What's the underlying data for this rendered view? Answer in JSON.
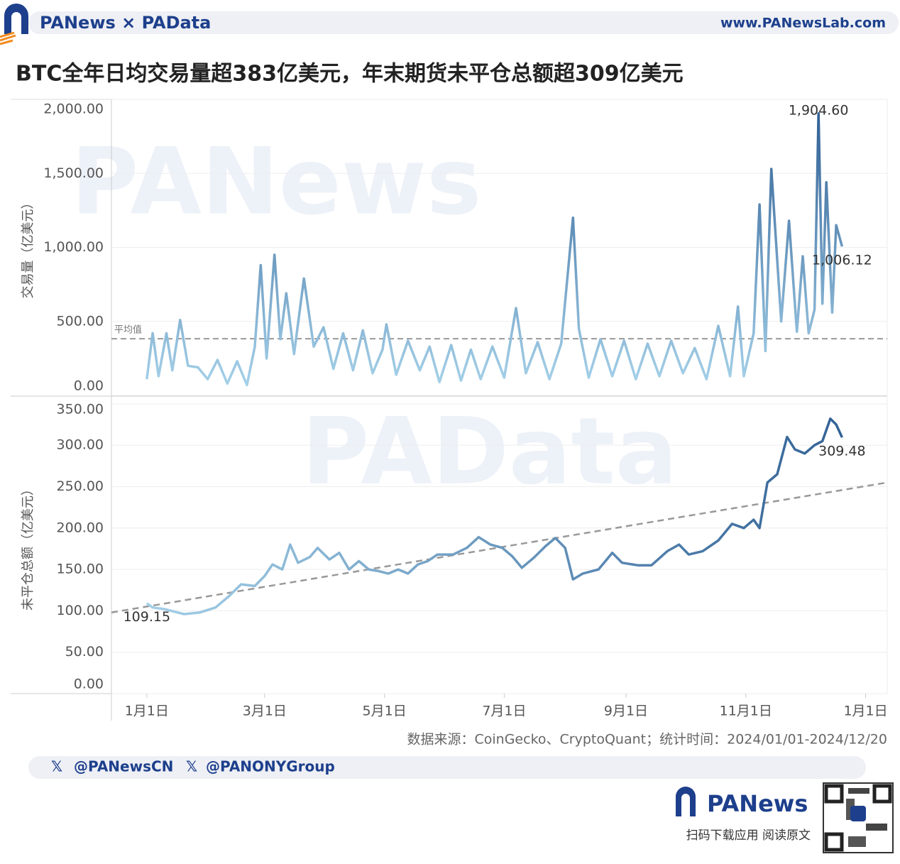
{
  "header": {
    "brand": "PANews × PAData",
    "site": "www.PANewsLab.com",
    "title": "BTC全年日均交易量超383亿美元，年末期货未平仓总额超309亿美元"
  },
  "watermarks": [
    "PANews",
    "PAData"
  ],
  "footer": {
    "source": "数据来源：CoinGecko、CryptoQuant；统计时间：2024/01/01-2024/12/20",
    "handles": [
      "@PANewsCN",
      "@PANONYGroup"
    ],
    "brand": "PANews",
    "cta": "扫码下载应用 阅读原文"
  },
  "chart_data": [
    {
      "type": "line",
      "y_label": "交易量（亿美元）",
      "xlim": [
        "2023-12-14",
        "2025-01-12"
      ],
      "ylim": [
        0,
        2000
      ],
      "yticks": [
        {
          "value": 0,
          "label": "0.00"
        },
        {
          "value": 500,
          "label": "500.00"
        },
        {
          "value": 1000,
          "label": "1,000.00"
        },
        {
          "value": 1500,
          "label": "1,500.00"
        },
        {
          "value": 2000,
          "label": "2,000.00"
        }
      ],
      "grid": true,
      "gradient": "vertical",
      "color_scale": [
        "#a9d5ec",
        "#2b5b91"
      ],
      "reference_line": {
        "value": 383,
        "label": "平均值",
        "color": "#999999"
      },
      "x": [
        "2024-01-01",
        "2024-01-04",
        "2024-01-07",
        "2024-01-11",
        "2024-01-14",
        "2024-01-18",
        "2024-01-22",
        "2024-01-27",
        "2024-02-01",
        "2024-02-06",
        "2024-02-11",
        "2024-02-16",
        "2024-02-21",
        "2024-02-25",
        "2024-02-28",
        "2024-03-02",
        "2024-03-06",
        "2024-03-09",
        "2024-03-12",
        "2024-03-16",
        "2024-03-21",
        "2024-03-26",
        "2024-03-31",
        "2024-04-05",
        "2024-04-10",
        "2024-04-15",
        "2024-04-20",
        "2024-04-25",
        "2024-04-30",
        "2024-05-02",
        "2024-05-07",
        "2024-05-13",
        "2024-05-19",
        "2024-05-24",
        "2024-05-29",
        "2024-06-04",
        "2024-06-09",
        "2024-06-14",
        "2024-06-19",
        "2024-06-25",
        "2024-07-01",
        "2024-07-07",
        "2024-07-12",
        "2024-07-18",
        "2024-07-24",
        "2024-07-30",
        "2024-08-05",
        "2024-08-08",
        "2024-08-13",
        "2024-08-19",
        "2024-08-25",
        "2024-08-31",
        "2024-09-06",
        "2024-09-12",
        "2024-09-18",
        "2024-09-24",
        "2024-09-30",
        "2024-10-06",
        "2024-10-12",
        "2024-10-18",
        "2024-10-24",
        "2024-10-28",
        "2024-10-31",
        "2024-11-05",
        "2024-11-08",
        "2024-11-11",
        "2024-11-14",
        "2024-11-19",
        "2024-11-23",
        "2024-11-27",
        "2024-11-30",
        "2024-12-03",
        "2024-12-06",
        "2024-12-08",
        "2024-12-10",
        "2024-12-12",
        "2024-12-15",
        "2024-12-17",
        "2024-12-20"
      ],
      "values": [
        110,
        420,
        130,
        420,
        170,
        510,
        200,
        190,
        110,
        240,
        80,
        230,
        70,
        330,
        880,
        250,
        950,
        380,
        690,
        280,
        790,
        330,
        460,
        180,
        420,
        170,
        440,
        150,
        310,
        480,
        140,
        370,
        170,
        330,
        90,
        340,
        100,
        310,
        110,
        330,
        120,
        590,
        150,
        360,
        110,
        350,
        1200,
        450,
        120,
        380,
        130,
        370,
        110,
        350,
        130,
        370,
        150,
        320,
        110,
        470,
        130,
        600,
        130,
        420,
        1290,
        300,
        1530,
        500,
        1180,
        430,
        940,
        420,
        580,
        1904.6,
        620,
        1440,
        560,
        1150,
        1006.12
      ],
      "value_labels": [
        null,
        null,
        null,
        null,
        null,
        null,
        null,
        null,
        null,
        null,
        null,
        null,
        null,
        null,
        null,
        null,
        null,
        null,
        null,
        null,
        null,
        null,
        null,
        null,
        null,
        null,
        null,
        null,
        null,
        null,
        null,
        null,
        null,
        null,
        null,
        null,
        null,
        null,
        null,
        null,
        null,
        null,
        null,
        null,
        null,
        null,
        null,
        null,
        null,
        null,
        null,
        null,
        null,
        null,
        null,
        null,
        null,
        null,
        null,
        null,
        null,
        null,
        null,
        null,
        null,
        null,
        null,
        null,
        null,
        null,
        null,
        null,
        null,
        "1,904.60",
        null,
        null,
        null,
        null,
        "1,006.12"
      ]
    },
    {
      "type": "line",
      "y_label": "未平仓总额（亿美元）",
      "xlim": [
        "2023-12-14",
        "2025-01-12"
      ],
      "ylim": [
        0,
        355
      ],
      "yticks": [
        {
          "value": 0,
          "label": "0.00"
        },
        {
          "value": 50,
          "label": "50.00"
        },
        {
          "value": 100,
          "label": "100.00"
        },
        {
          "value": 150,
          "label": "150.00"
        },
        {
          "value": 200,
          "label": "200.00"
        },
        {
          "value": 250,
          "label": "250.00"
        },
        {
          "value": 300,
          "label": "300.00"
        },
        {
          "value": 350,
          "label": "350.00"
        }
      ],
      "xticks": [
        {
          "value": "2024-01-01",
          "label": "1月1日"
        },
        {
          "value": "2024-03-01",
          "label": "3月1日"
        },
        {
          "value": "2024-05-01",
          "label": "5月1日"
        },
        {
          "value": "2024-07-01",
          "label": "7月1日"
        },
        {
          "value": "2024-09-01",
          "label": "9月1日"
        },
        {
          "value": "2024-11-01",
          "label": "11月1日"
        },
        {
          "value": "2025-01-01",
          "label": "1月1日"
        }
      ],
      "grid": true,
      "gradient": "horizontal",
      "color_scale": [
        "#a9d5ec",
        "#2b5b91"
      ],
      "trend_line": {
        "x": [
          "2023-12-14",
          "2025-01-12"
        ],
        "values": [
          98,
          255
        ],
        "color": "#999999"
      },
      "x": [
        "2024-01-01",
        "2024-01-04",
        "2024-01-10",
        "2024-01-20",
        "2024-01-28",
        "2024-02-05",
        "2024-02-12",
        "2024-02-18",
        "2024-02-25",
        "2024-03-01",
        "2024-03-05",
        "2024-03-10",
        "2024-03-14",
        "2024-03-18",
        "2024-03-24",
        "2024-03-28",
        "2024-04-03",
        "2024-04-08",
        "2024-04-13",
        "2024-04-18",
        "2024-04-23",
        "2024-04-28",
        "2024-05-03",
        "2024-05-08",
        "2024-05-13",
        "2024-05-18",
        "2024-05-23",
        "2024-05-28",
        "2024-06-05",
        "2024-06-12",
        "2024-06-18",
        "2024-06-24",
        "2024-06-30",
        "2024-07-05",
        "2024-07-10",
        "2024-07-16",
        "2024-07-22",
        "2024-07-27",
        "2024-08-01",
        "2024-08-05",
        "2024-08-10",
        "2024-08-18",
        "2024-08-25",
        "2024-08-30",
        "2024-09-07",
        "2024-09-14",
        "2024-09-22",
        "2024-09-28",
        "2024-10-03",
        "2024-10-10",
        "2024-10-18",
        "2024-10-25",
        "2024-10-31",
        "2024-11-05",
        "2024-11-08",
        "2024-11-12",
        "2024-11-17",
        "2024-11-22",
        "2024-11-26",
        "2024-12-01",
        "2024-12-06",
        "2024-12-10",
        "2024-12-14",
        "2024-12-17",
        "2024-12-20"
      ],
      "values": [
        109.15,
        104,
        102,
        96,
        98,
        104,
        118,
        132,
        130,
        142,
        156,
        150,
        180,
        158,
        165,
        176,
        162,
        170,
        150,
        160,
        150,
        148,
        145,
        150,
        145,
        156,
        160,
        168,
        168,
        176,
        189,
        180,
        176,
        166,
        152,
        164,
        178,
        188,
        176,
        138,
        145,
        150,
        170,
        158,
        155,
        155,
        172,
        180,
        168,
        172,
        185,
        205,
        200,
        210,
        200,
        255,
        265,
        310,
        295,
        290,
        300,
        305,
        332,
        325,
        309.48
      ],
      "value_labels": [
        "109.15",
        null,
        null,
        null,
        null,
        null,
        null,
        null,
        null,
        null,
        null,
        null,
        null,
        null,
        null,
        null,
        null,
        null,
        null,
        null,
        null,
        null,
        null,
        null,
        null,
        null,
        null,
        null,
        null,
        null,
        null,
        null,
        null,
        null,
        null,
        null,
        null,
        null,
        null,
        null,
        null,
        null,
        null,
        null,
        null,
        null,
        null,
        null,
        null,
        null,
        null,
        null,
        null,
        null,
        null,
        null,
        null,
        null,
        null,
        null,
        null,
        null,
        null,
        null,
        "309.48"
      ]
    }
  ]
}
